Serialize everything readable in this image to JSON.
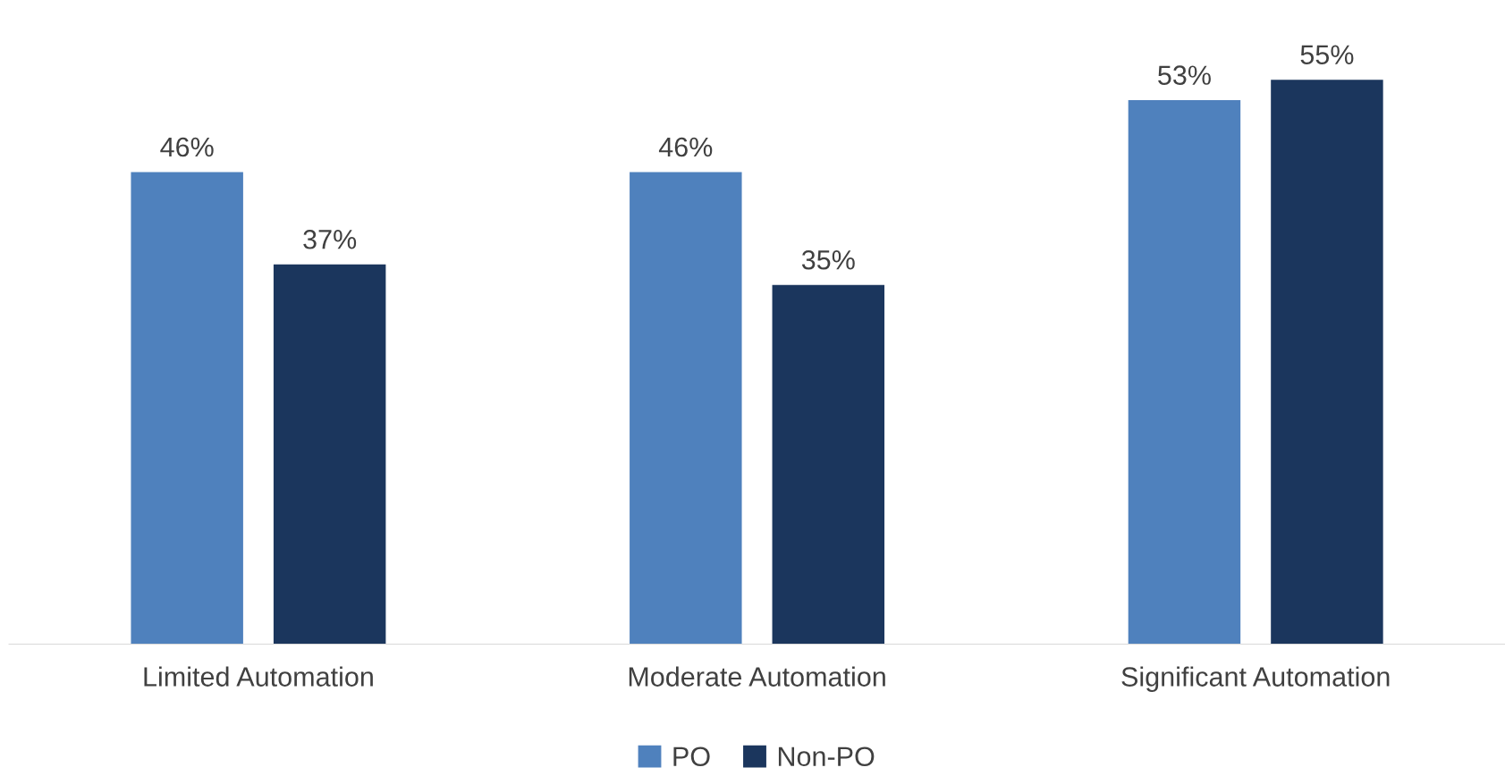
{
  "chart_data": {
    "type": "bar",
    "categories": [
      "Limited Automation",
      "Moderate Automation",
      "Significant Automation"
    ],
    "series": [
      {
        "name": "PO",
        "color": "#4f81bd",
        "values": [
          46,
          46,
          53
        ],
        "value_labels": [
          "46%",
          "46%",
          "53%"
        ]
      },
      {
        "name": "Non-PO",
        "color": "#1b365d",
        "values": [
          37,
          35,
          55
        ],
        "value_labels": [
          "37%",
          "35%",
          "55%"
        ]
      }
    ],
    "relative": false,
    "legend": "bottom",
    "grid": false
  }
}
